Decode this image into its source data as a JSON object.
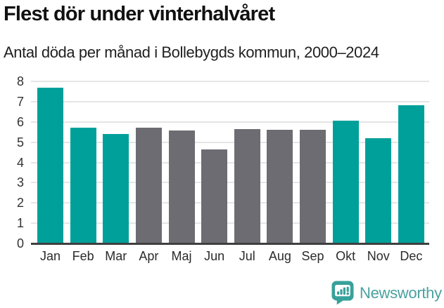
{
  "chart_data": {
    "type": "bar",
    "title": "Flest dör under vinterhalvåret",
    "subtitle": "Antal döda per månad i Bollebygds kommun, 2000–2024",
    "categories": [
      "Jan",
      "Feb",
      "Mar",
      "Apr",
      "Maj",
      "Jun",
      "Jul",
      "Aug",
      "Sep",
      "Okt",
      "Nov",
      "Dec"
    ],
    "values": [
      7.7,
      5.72,
      5.41,
      5.72,
      5.59,
      4.65,
      5.66,
      5.6,
      5.62,
      6.07,
      5.18,
      6.84
    ],
    "highlighted": [
      true,
      true,
      true,
      false,
      false,
      false,
      false,
      false,
      false,
      true,
      true,
      true
    ],
    "colors": {
      "highlight": "#00a09a",
      "muted": "#6c6c72",
      "gridline": "#e5e5e5",
      "axis": "#3f3f3f"
    },
    "ylim": [
      0,
      8
    ],
    "yticks": [
      0,
      1,
      2,
      3,
      4,
      5,
      6,
      7,
      8
    ],
    "xlabel": "",
    "ylabel": "",
    "legend": "none",
    "grid": true
  },
  "footer": {
    "brand": "Newsworthy",
    "logo_color": "#37a19b",
    "text_color": "#4aa1a0"
  }
}
